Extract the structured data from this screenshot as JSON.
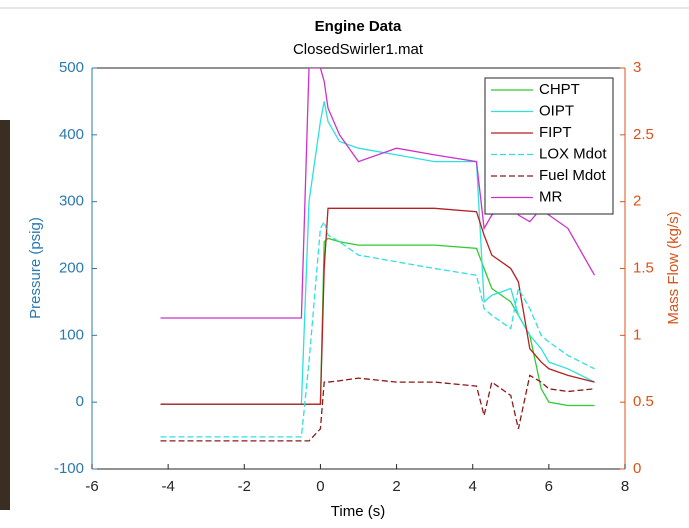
{
  "chart_data": {
    "type": "line",
    "title": "Engine Data",
    "subtitle": "ClosedSwirler1.mat",
    "x_label": "Time (s)",
    "y_label": "Pressure (psig)",
    "y2_label": "Mass Flow (kg/s)",
    "xlim": [
      -6,
      8
    ],
    "xticks": [
      -6,
      -4,
      -2,
      0,
      2,
      4,
      6,
      8
    ],
    "ylim": [
      -100,
      500
    ],
    "yticks": [
      -100,
      0,
      100,
      200,
      300,
      400,
      500
    ],
    "y2lim": [
      0,
      3
    ],
    "y2ticks": [
      0,
      0.5,
      1,
      1.5,
      2,
      2.5,
      3
    ],
    "y_color": "#2a7ab0",
    "y2_color": "#d95319",
    "legend": "upper right",
    "grid": false,
    "x": [
      -4.2,
      -0.5,
      -0.3,
      0,
      0.1,
      0.2,
      0.5,
      1,
      2,
      3,
      4.1,
      4.3,
      4.5,
      5,
      5.2,
      5.5,
      5.8,
      6,
      6.5,
      7.2
    ],
    "series": [
      {
        "name": "CHPT",
        "color": "#2ecc2e",
        "linestyle": "solid",
        "values": [
          -3,
          -3,
          -3,
          -3,
          240,
          245,
          240,
          235,
          235,
          235,
          230,
          200,
          170,
          150,
          130,
          100,
          20,
          0,
          -5,
          -5
        ]
      },
      {
        "name": "OIPT",
        "color": "#2ee0e0",
        "linestyle": "solid",
        "values": [
          -3,
          -3,
          300,
          420,
          450,
          420,
          390,
          380,
          370,
          360,
          360,
          150,
          160,
          170,
          130,
          100,
          80,
          60,
          50,
          30
        ]
      },
      {
        "name": "FIPT",
        "color": "#b22222",
        "linestyle": "solid",
        "values": [
          -3,
          -3,
          -3,
          -3,
          200,
          290,
          290,
          290,
          290,
          290,
          285,
          250,
          220,
          200,
          180,
          80,
          60,
          50,
          40,
          30
        ]
      },
      {
        "name": "LOX Mdot",
        "color": "#2ee0e0",
        "linestyle": "dashed",
        "axis": "y2",
        "values": [
          0.24,
          0.24,
          0.8,
          1.8,
          1.85,
          1.75,
          1.7,
          1.6,
          1.55,
          1.5,
          1.45,
          1.2,
          1.15,
          1.05,
          1.35,
          1.2,
          1.0,
          0.95,
          0.85,
          0.75
        ]
      },
      {
        "name": "Fuel Mdot",
        "color": "#8b1a1a",
        "linestyle": "dashed",
        "axis": "y2",
        "values": [
          0.21,
          0.21,
          0.21,
          0.3,
          0.65,
          0.65,
          0.66,
          0.68,
          0.65,
          0.65,
          0.62,
          0.4,
          0.65,
          0.55,
          0.3,
          0.7,
          0.65,
          0.6,
          0.58,
          0.6
        ]
      },
      {
        "name": "MR",
        "color": "#cc33cc",
        "linestyle": "solid",
        "axis": "y2",
        "values": [
          1.13,
          1.13,
          3,
          3,
          2.9,
          2.7,
          2.5,
          2.3,
          2.4,
          2.35,
          2.3,
          1.8,
          1.9,
          2.0,
          1.9,
          1.85,
          1.95,
          1.9,
          1.8,
          1.45
        ]
      }
    ]
  }
}
